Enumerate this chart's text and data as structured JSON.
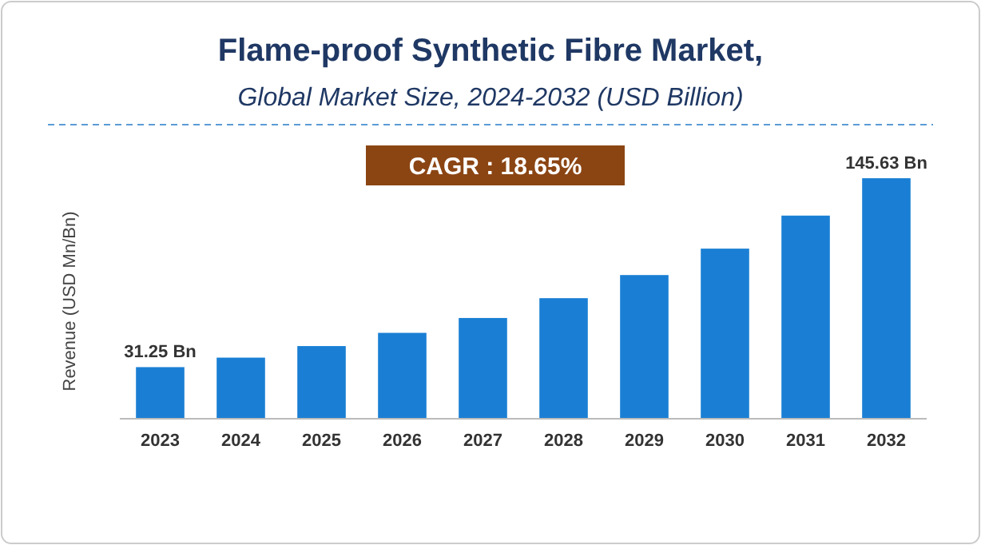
{
  "chart_data": {
    "type": "bar",
    "title": "Flame-proof Synthetic Fibre Market,",
    "subtitle": "Global Market Size, 2024-2032 (USD Billion)",
    "ylabel": "Revenue (USD Mn/Bn)",
    "categories": [
      "2023",
      "2024",
      "2025",
      "2026",
      "2027",
      "2028",
      "2029",
      "2030",
      "2031",
      "2032"
    ],
    "values": [
      31.25,
      37,
      44,
      52,
      61,
      73,
      87,
      103,
      123,
      145.63
    ],
    "value_labels": [
      "31.25 Bn",
      null,
      null,
      null,
      null,
      null,
      null,
      null,
      null,
      "145.63 Bn"
    ],
    "color": "#1a7fd4",
    "annotations": [
      "CAGR : 18.65%"
    ]
  }
}
